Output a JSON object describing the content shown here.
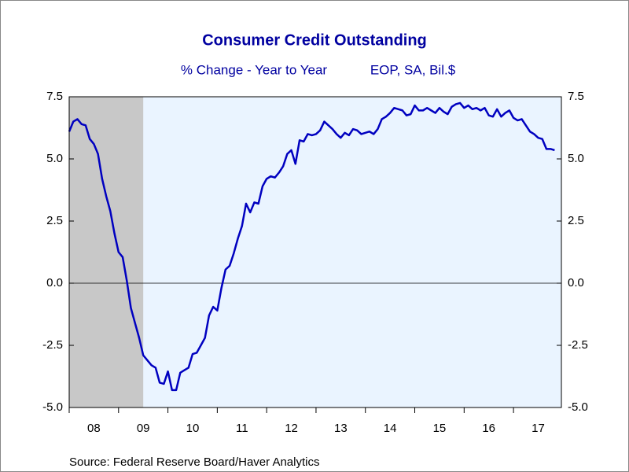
{
  "chart_data": {
    "type": "line",
    "title": "Consumer Credit Outstanding",
    "subtitle": "% Change - Year to Year",
    "subtitle_right": "EOP, SA, Bil.$",
    "source": "Source:  Federal Reserve Board/Haver Analytics",
    "color": "#0000c0",
    "shaded_range": [
      2008,
      2009.5
    ],
    "x": [
      2008,
      2008.083,
      2008.167,
      2008.25,
      2008.333,
      2008.417,
      2008.5,
      2008.583,
      2008.667,
      2008.75,
      2008.833,
      2008.917,
      2009,
      2009.083,
      2009.167,
      2009.25,
      2009.333,
      2009.417,
      2009.5,
      2009.583,
      2009.667,
      2009.75,
      2009.833,
      2009.917,
      2010,
      2010.083,
      2010.167,
      2010.25,
      2010.333,
      2010.417,
      2010.5,
      2010.583,
      2010.667,
      2010.75,
      2010.833,
      2010.917,
      2011,
      2011.083,
      2011.167,
      2011.25,
      2011.333,
      2011.417,
      2011.5,
      2011.583,
      2011.667,
      2011.75,
      2011.833,
      2011.917,
      2012,
      2012.083,
      2012.167,
      2012.25,
      2012.333,
      2012.417,
      2012.5,
      2012.583,
      2012.667,
      2012.75,
      2012.833,
      2012.917,
      2013,
      2013.083,
      2013.167,
      2013.25,
      2013.333,
      2013.417,
      2013.5,
      2013.583,
      2013.667,
      2013.75,
      2013.833,
      2013.917,
      2014,
      2014.083,
      2014.167,
      2014.25,
      2014.333,
      2014.417,
      2014.5,
      2014.583,
      2014.667,
      2014.75,
      2014.833,
      2014.917,
      2015,
      2015.083,
      2015.167,
      2015.25,
      2015.333,
      2015.417,
      2015.5,
      2015.583,
      2015.667,
      2015.75,
      2015.833,
      2015.917,
      2016,
      2016.083,
      2016.167,
      2016.25,
      2016.333,
      2016.417,
      2016.5,
      2016.583,
      2016.667,
      2016.75,
      2016.833,
      2016.917,
      2017,
      2017.083,
      2017.167,
      2017.25,
      2017.333,
      2017.417,
      2017.5,
      2017.583,
      2017.667,
      2017.75,
      2017.833
    ],
    "values": [
      6.1,
      6.5,
      6.6,
      6.4,
      6.35,
      5.8,
      5.6,
      5.2,
      4.2,
      3.5,
      2.9,
      2.0,
      1.25,
      1.05,
      0.1,
      -1.0,
      -1.6,
      -2.2,
      -2.9,
      -3.1,
      -3.3,
      -3.4,
      -4.0,
      -4.05,
      -3.55,
      -4.3,
      -4.3,
      -3.6,
      -3.5,
      -3.4,
      -2.85,
      -2.8,
      -2.5,
      -2.2,
      -1.3,
      -0.95,
      -1.1,
      -0.2,
      0.55,
      0.7,
      1.2,
      1.8,
      2.3,
      3.2,
      2.85,
      3.25,
      3.2,
      3.9,
      4.2,
      4.3,
      4.25,
      4.45,
      4.7,
      5.2,
      5.35,
      4.8,
      5.75,
      5.7,
      6.0,
      5.95,
      6.0,
      6.15,
      6.5,
      6.35,
      6.2,
      6.0,
      5.85,
      6.05,
      5.95,
      6.2,
      6.15,
      6.0,
      6.05,
      6.1,
      6.0,
      6.2,
      6.6,
      6.7,
      6.85,
      7.05,
      7.0,
      6.95,
      6.75,
      6.8,
      7.15,
      6.95,
      6.95,
      7.05,
      6.95,
      6.85,
      7.05,
      6.9,
      6.8,
      7.1,
      7.2,
      7.25,
      7.05,
      7.15,
      7.0,
      7.05,
      6.95,
      7.05,
      6.75,
      6.7,
      7.0,
      6.7,
      6.85,
      6.95,
      6.65,
      6.55,
      6.6,
      6.35,
      6.1,
      6.0,
      5.85,
      5.8,
      5.4,
      5.4,
      5.35
    ],
    "xlim": [
      2008,
      2017.97
    ],
    "xticks": [
      {
        "value": 2008.5,
        "label": "08"
      },
      {
        "value": 2009.5,
        "label": "09"
      },
      {
        "value": 2010.5,
        "label": "10"
      },
      {
        "value": 2011.5,
        "label": "11"
      },
      {
        "value": 2012.5,
        "label": "12"
      },
      {
        "value": 2013.5,
        "label": "13"
      },
      {
        "value": 2014.5,
        "label": "14"
      },
      {
        "value": 2015.5,
        "label": "15"
      },
      {
        "value": 2016.5,
        "label": "16"
      },
      {
        "value": 2017.5,
        "label": "17"
      }
    ],
    "ylim": [
      -5,
      7.5
    ],
    "yticks": [
      7.5,
      {
        "value": 5,
        "label": "5.0"
      },
      2.5,
      {
        "value": 0,
        "label": "0.0"
      },
      -2.5,
      {
        "value": -5,
        "label": "-5.0"
      }
    ],
    "y2lim": [
      -5,
      7.5
    ],
    "y2ticks": [
      7.5,
      {
        "value": 5,
        "label": "5.0"
      },
      2.5,
      {
        "value": 0,
        "label": "0.0"
      },
      -2.5,
      {
        "value": -5,
        "label": "-5.0"
      }
    ]
  }
}
